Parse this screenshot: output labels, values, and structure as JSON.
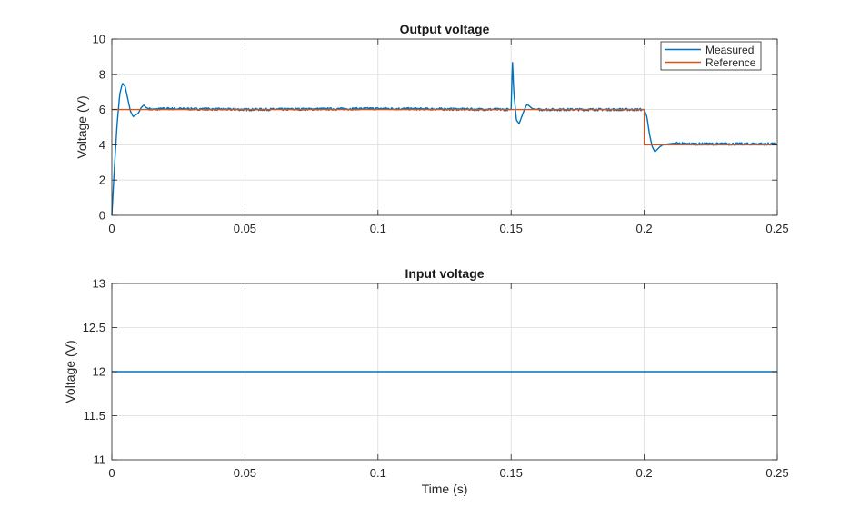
{
  "chart_data": [
    {
      "type": "line",
      "title": "Output voltage",
      "xlabel": "",
      "ylabel": "Voltage (V)",
      "xlim": [
        0,
        0.25
      ],
      "ylim": [
        0,
        10
      ],
      "xticks": [
        0,
        0.05,
        0.1,
        0.15,
        0.2,
        0.25
      ],
      "xtick_labels": [
        "0",
        "0.05",
        "0.1",
        "0.15",
        "0.2",
        "0.25"
      ],
      "yticks": [
        0,
        2,
        4,
        6,
        8,
        10
      ],
      "ytick_labels": [
        "0",
        "2",
        "4",
        "6",
        "8",
        "10"
      ],
      "grid": true,
      "legend_position": "top-right",
      "series": [
        {
          "name": "Measured",
          "color": "#0072BD",
          "x": [
            0,
            0.001,
            0.002,
            0.003,
            0.004,
            0.005,
            0.006,
            0.007,
            0.008,
            0.009,
            0.0095,
            0.01,
            0.011,
            0.012,
            0.013,
            0.015,
            0.02,
            0.05,
            0.1,
            0.15,
            0.1505,
            0.151,
            0.152,
            0.153,
            0.154,
            0.155,
            0.156,
            0.158,
            0.16,
            0.2,
            0.201,
            0.202,
            0.203,
            0.204,
            0.205,
            0.206,
            0.207,
            0.209,
            0.212,
            0.215,
            0.25
          ],
          "y": [
            0,
            2.8,
            5.2,
            6.9,
            7.5,
            7.3,
            6.6,
            5.9,
            5.6,
            5.7,
            5.75,
            5.8,
            6.1,
            6.25,
            6.1,
            6.0,
            6.05,
            6.0,
            6.05,
            6.0,
            8.8,
            7.0,
            5.4,
            5.2,
            5.6,
            6.0,
            6.3,
            6.05,
            6.0,
            6.0,
            5.6,
            4.6,
            3.9,
            3.6,
            3.75,
            3.9,
            4.0,
            4.05,
            4.1,
            4.05,
            4.05
          ]
        },
        {
          "name": "Reference",
          "color": "#D95319",
          "x": [
            0,
            0.2,
            0.2,
            0.25
          ],
          "y": [
            6,
            6,
            4,
            4
          ]
        }
      ]
    },
    {
      "type": "line",
      "title": "Input voltage",
      "xlabel": "Time (s)",
      "ylabel": "Voltage (V)",
      "xlim": [
        0,
        0.25
      ],
      "ylim": [
        11,
        13
      ],
      "xticks": [
        0,
        0.05,
        0.1,
        0.15,
        0.2,
        0.25
      ],
      "xtick_labels": [
        "0",
        "0.05",
        "0.1",
        "0.15",
        "0.2",
        "0.25"
      ],
      "yticks": [
        11,
        11.5,
        12,
        12.5,
        13
      ],
      "ytick_labels": [
        "11",
        "11.5",
        "12",
        "12.5",
        "13"
      ],
      "grid": true,
      "series": [
        {
          "color": "#0072BD",
          "x": [
            0,
            0.25
          ],
          "y": [
            12,
            12
          ]
        }
      ]
    }
  ]
}
